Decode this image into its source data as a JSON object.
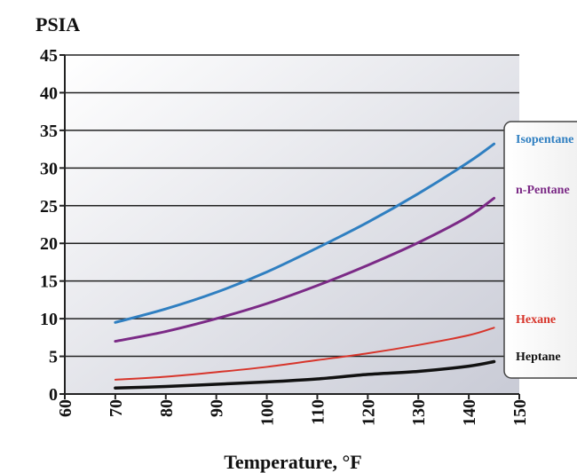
{
  "chart_data": {
    "type": "line",
    "ylabel": "PSIA",
    "xlabel": "Temperature, °F",
    "xlim": [
      60,
      150
    ],
    "ylim": [
      0,
      45
    ],
    "x_ticks": [
      "60",
      "70",
      "80",
      "90",
      "100",
      "110",
      "120",
      "130",
      "140",
      "150"
    ],
    "y_ticks": [
      "0",
      "5",
      "10",
      "15",
      "20",
      "25",
      "30",
      "35",
      "40",
      "45"
    ],
    "grid": "horizontal",
    "legend_position": "right",
    "series": [
      {
        "name": "Isopentane",
        "color": "#2f7fc1",
        "x": [
          70,
          80,
          90,
          100,
          110,
          120,
          130,
          140,
          145
        ],
        "y": [
          9.5,
          11.3,
          13.5,
          16.2,
          19.4,
          22.8,
          26.6,
          30.8,
          33.2
        ]
      },
      {
        "name": "n-Pentane",
        "color": "#7b2a86",
        "x": [
          70,
          80,
          90,
          100,
          110,
          120,
          130,
          140,
          145
        ],
        "y": [
          7.0,
          8.3,
          10.0,
          12.0,
          14.4,
          17.1,
          20.1,
          23.6,
          26.0
        ]
      },
      {
        "name": "Hexane",
        "color": "#d7352b",
        "x": [
          70,
          80,
          90,
          100,
          110,
          120,
          130,
          140,
          145
        ],
        "y": [
          1.9,
          2.3,
          2.9,
          3.6,
          4.5,
          5.4,
          6.5,
          7.8,
          8.8
        ]
      },
      {
        "name": "Heptane",
        "color": "#111111",
        "x": [
          70,
          80,
          90,
          100,
          110,
          120,
          130,
          140,
          145
        ],
        "y": [
          0.8,
          1.0,
          1.3,
          1.6,
          2.0,
          2.6,
          3.0,
          3.7,
          4.3
        ]
      }
    ]
  }
}
